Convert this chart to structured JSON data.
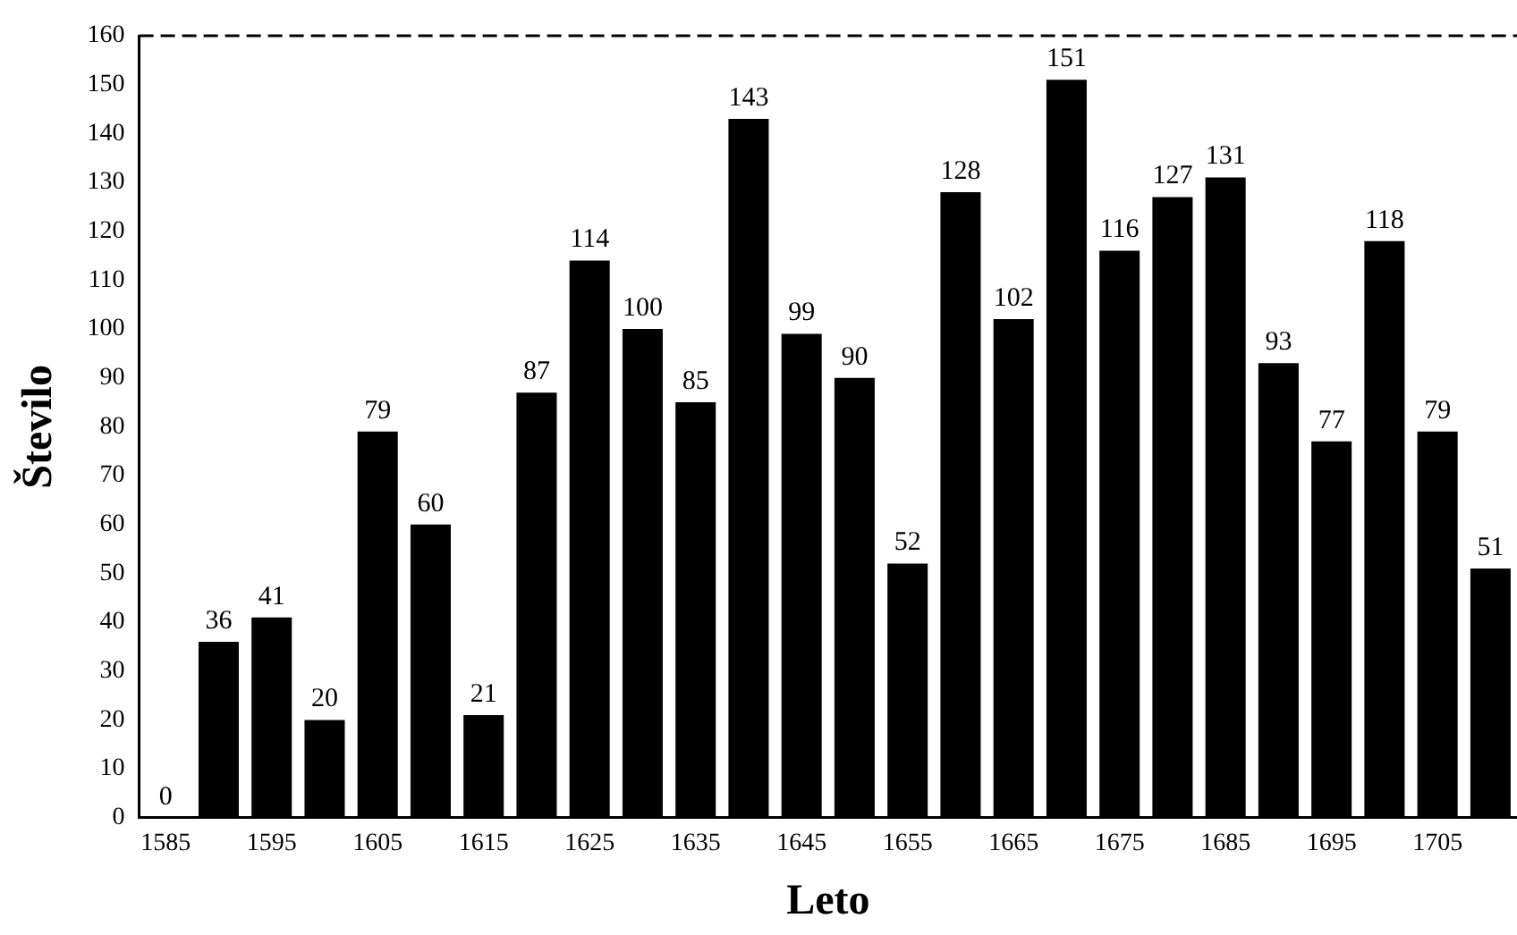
{
  "chart_data": {
    "type": "bar",
    "xlabel": "Leto",
    "ylabel": "Število",
    "categories": [
      "1585",
      null,
      "1595",
      null,
      "1605",
      null,
      "1615",
      null,
      "1625",
      null,
      "1635",
      null,
      "1645",
      null,
      "1655",
      null,
      "1665",
      null,
      "1675",
      null,
      "1685",
      null,
      "1695",
      null,
      "1705",
      null
    ],
    "values": [
      0,
      36,
      41,
      20,
      79,
      60,
      21,
      87,
      114,
      100,
      85,
      143,
      99,
      90,
      52,
      128,
      102,
      151,
      116,
      127,
      131,
      93,
      77,
      118,
      79,
      51
    ],
    "color": "#000000",
    "ylim": [
      0,
      160
    ],
    "yticks": [
      0,
      10,
      20,
      30,
      40,
      50,
      60,
      70,
      80,
      90,
      100,
      110,
      120,
      130,
      140,
      150,
      160
    ],
    "data_labels": true,
    "grid": false,
    "legend": false
  }
}
